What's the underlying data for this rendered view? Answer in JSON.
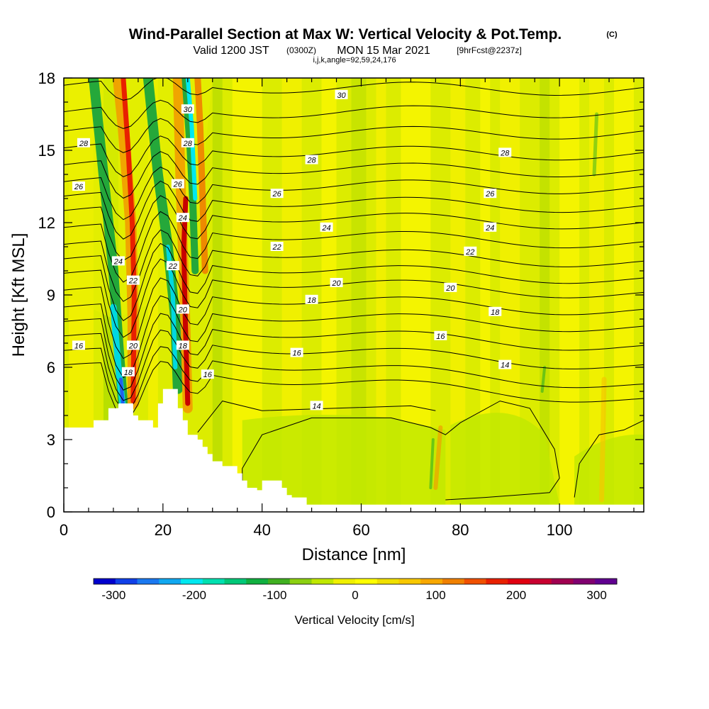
{
  "title": {
    "main": "Wind-Parallel Section at Max W: Vertical Velocity & Pot.Temp.",
    "copyright": "(C)",
    "valid": "Valid 1200 JST",
    "utc": "(0300Z)",
    "date": "MON 15 Mar 2021",
    "forecast": "[9hrFcst@2237z]",
    "ijk": "i,j,k,angle=92,59,24,176"
  },
  "chart_data": {
    "type": "heatmap",
    "xlabel": "Distance [nm]",
    "ylabel": "Height [Kft MSL]",
    "xlim": [
      0,
      117
    ],
    "ylim": [
      0,
      18
    ],
    "x_ticks": [
      "0",
      "20",
      "40",
      "60",
      "80",
      "100"
    ],
    "x_tick_values": [
      0,
      20,
      40,
      60,
      80,
      100
    ],
    "y_ticks": [
      "0",
      "3",
      "6",
      "9",
      "12",
      "15",
      "18"
    ],
    "y_tick_values": [
      0,
      3,
      6,
      9,
      12,
      15,
      18
    ],
    "colorbar": {
      "title": "Vertical Velocity [cm/s]",
      "ticks": [
        "-300",
        "-200",
        "-100",
        "0",
        "100",
        "200",
        "300"
      ],
      "tick_values": [
        -300,
        -200,
        -100,
        0,
        100,
        200,
        300
      ],
      "range": [
        -325,
        325
      ],
      "colors": [
        "#0000cd",
        "#1040e8",
        "#1a78f0",
        "#10a8f0",
        "#00e8f0",
        "#00e0b0",
        "#00c878",
        "#10b040",
        "#40b020",
        "#8cd010",
        "#c0e800",
        "#f0f000",
        "#ffff00",
        "#f0e000",
        "#f8c800",
        "#f8a800",
        "#f08000",
        "#f05000",
        "#e82000",
        "#e00010",
        "#c80030",
        "#a00050",
        "#800070",
        "#600090"
      ]
    },
    "contours": {
      "field": "potential temperature",
      "labels": [
        "30",
        "28",
        "26",
        "24",
        "22",
        "20",
        "18",
        "16",
        "14"
      ]
    },
    "terrain": [
      [
        0,
        3.5
      ],
      [
        6,
        3.5
      ],
      [
        6,
        3.8
      ],
      [
        9,
        3.8
      ],
      [
        9,
        4.3
      ],
      [
        11,
        4.3
      ],
      [
        11,
        4.5
      ],
      [
        14,
        4.5
      ],
      [
        14,
        4.0
      ],
      [
        15,
        4.0
      ],
      [
        15,
        3.8
      ],
      [
        18,
        3.8
      ],
      [
        18,
        3.5
      ],
      [
        19,
        3.5
      ],
      [
        19,
        4.5
      ],
      [
        20,
        4.5
      ],
      [
        20,
        5.1
      ],
      [
        23,
        5.1
      ],
      [
        23,
        4.3
      ],
      [
        24,
        4.3
      ],
      [
        24,
        3.8
      ],
      [
        25,
        3.8
      ],
      [
        25,
        3.2
      ],
      [
        27,
        3.2
      ],
      [
        27,
        3.0
      ],
      [
        28,
        3.0
      ],
      [
        28,
        2.7
      ],
      [
        29,
        2.7
      ],
      [
        29,
        2.4
      ],
      [
        30,
        2.4
      ],
      [
        30,
        2.1
      ],
      [
        32,
        2.1
      ],
      [
        32,
        1.9
      ],
      [
        35,
        1.9
      ],
      [
        35,
        1.6
      ],
      [
        36,
        1.6
      ],
      [
        36,
        1.3
      ],
      [
        37,
        1.3
      ],
      [
        37,
        1.0
      ],
      [
        39,
        1.0
      ],
      [
        39,
        0.9
      ],
      [
        40,
        0.9
      ],
      [
        40,
        1.3
      ],
      [
        44,
        1.3
      ],
      [
        44,
        1.0
      ],
      [
        45,
        1.0
      ],
      [
        45,
        0.7
      ],
      [
        46,
        0.7
      ],
      [
        46,
        0.6
      ],
      [
        49,
        0.6
      ],
      [
        49,
        0.3
      ],
      [
        117,
        0.3
      ]
    ]
  }
}
